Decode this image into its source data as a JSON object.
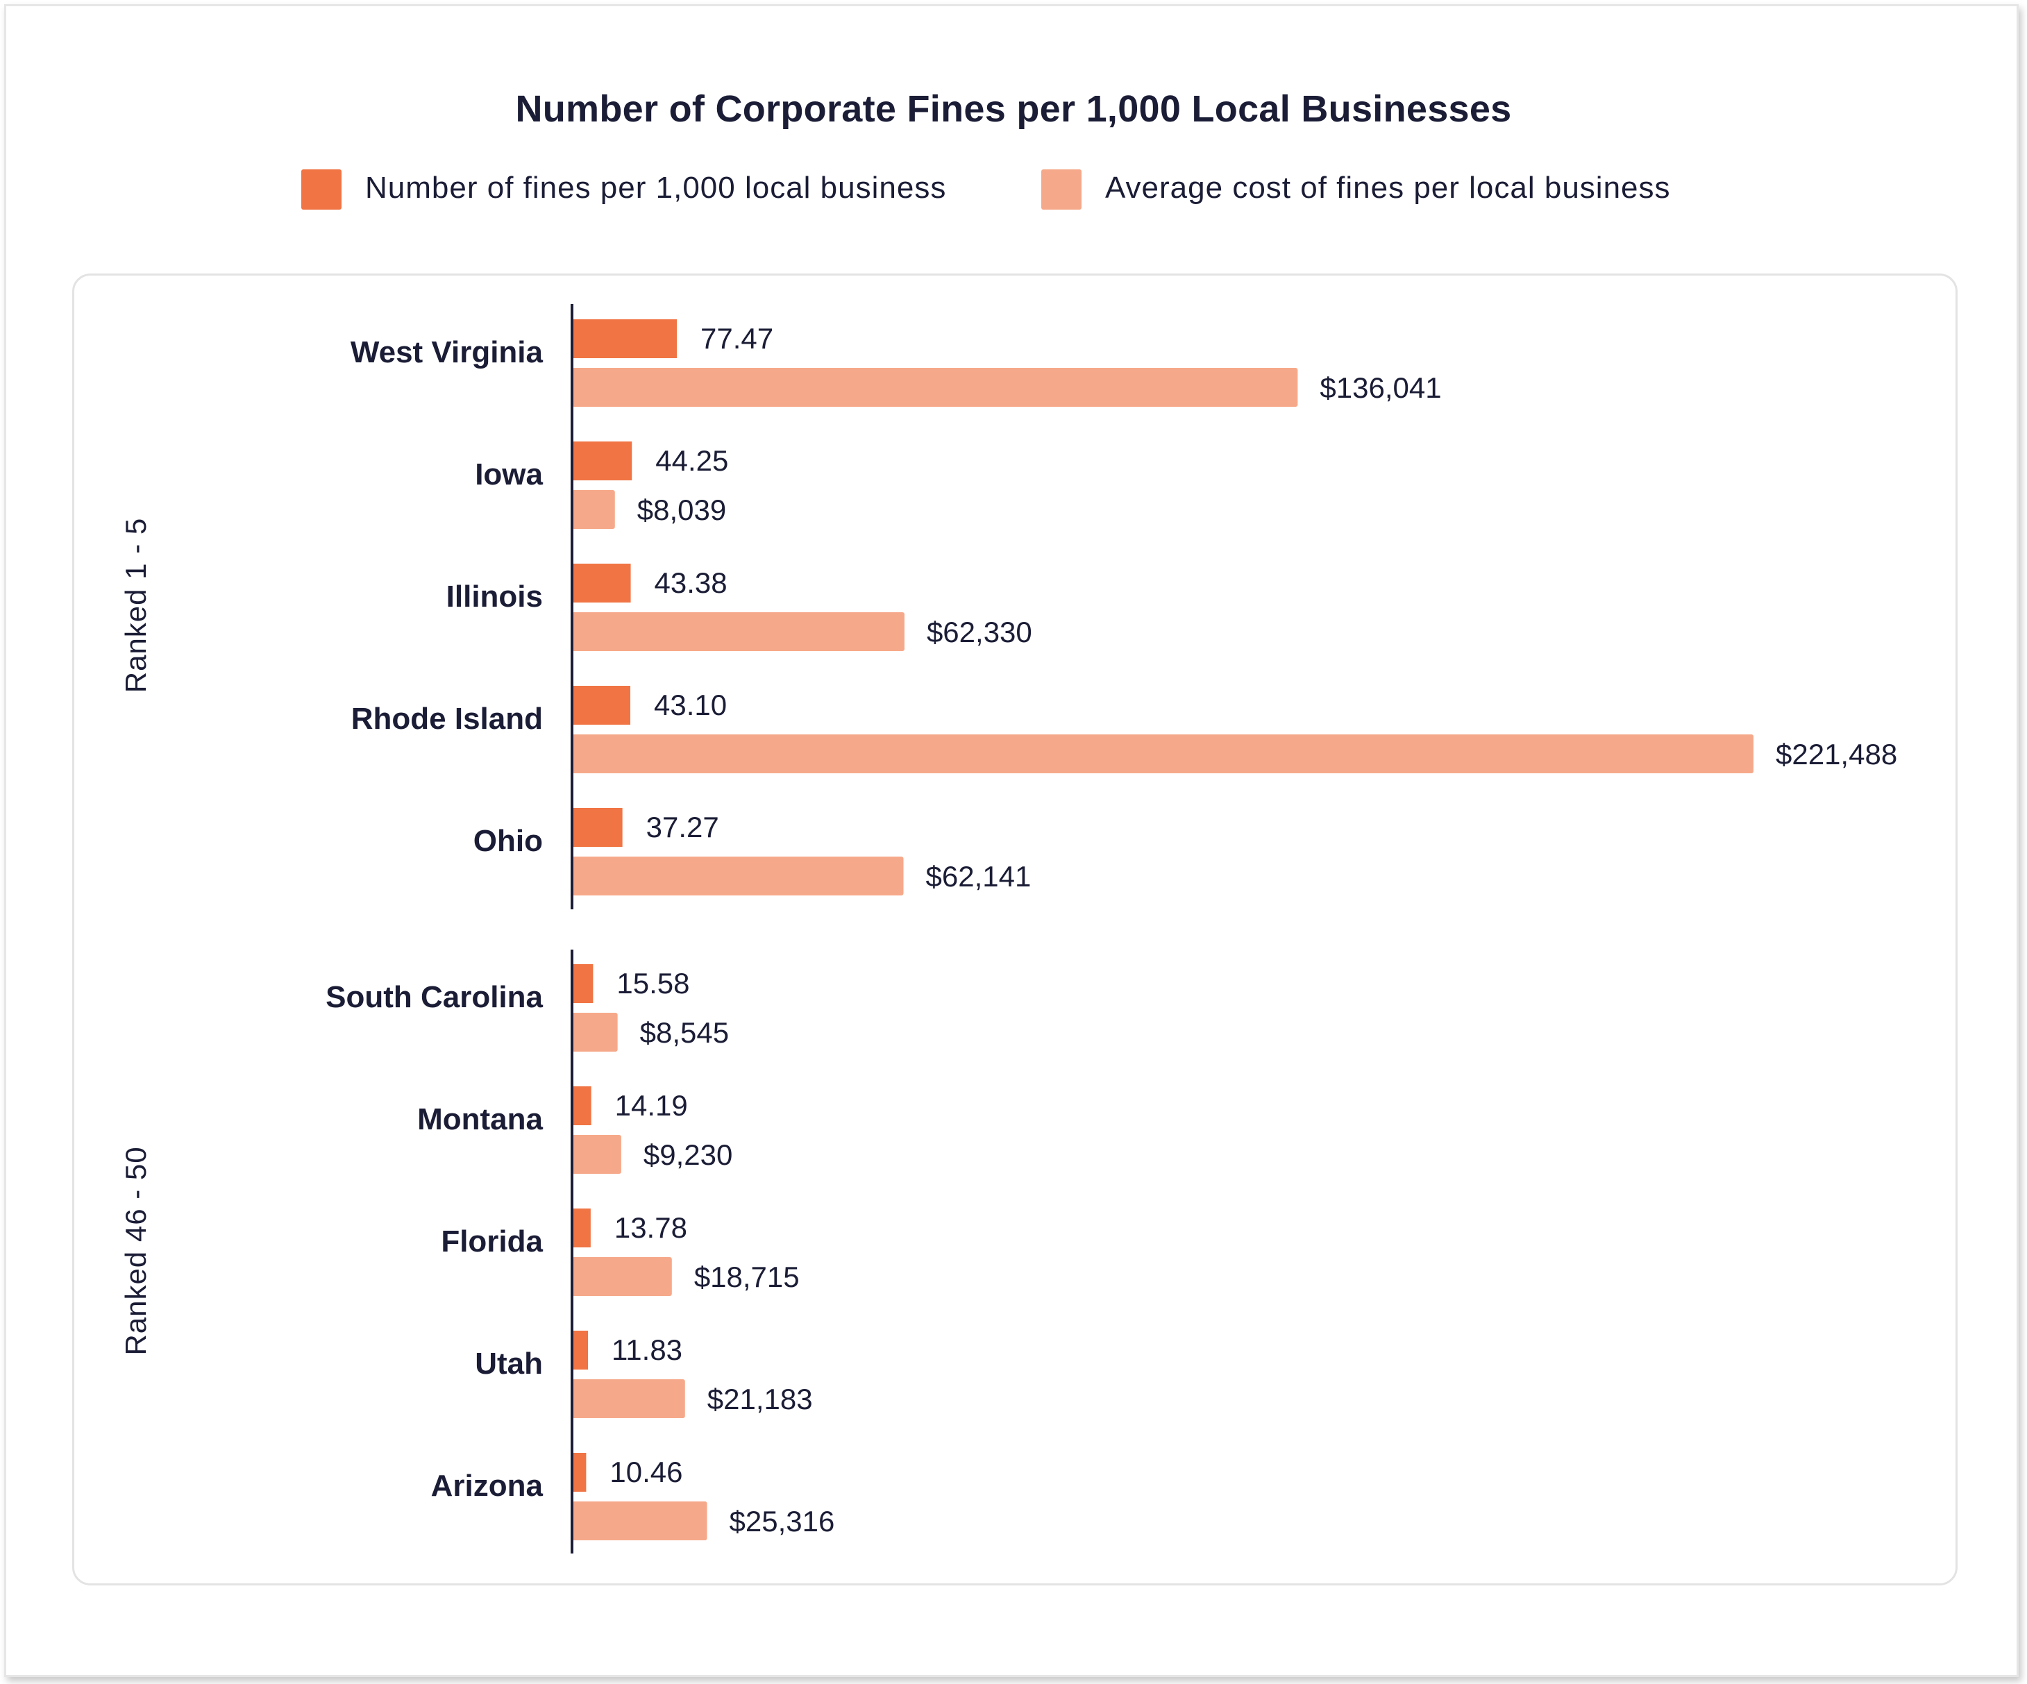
{
  "chart_data": {
    "type": "bar",
    "orientation": "horizontal",
    "title": "Number of Corporate Fines per 1,000 Local Businesses",
    "colors": {
      "fines": "#f07444",
      "cost": "#f6a98a",
      "axis": "#1b1d36",
      "text": "#1b1d36"
    },
    "legend": {
      "position": "top",
      "items": [
        {
          "key": "fines",
          "label": "Number of fines per 1,000 local business",
          "color": "#f07444"
        },
        {
          "key": "cost",
          "label": "Average cost of fines per local business",
          "color": "#f6a98a"
        }
      ]
    },
    "groups": [
      {
        "label": "Ranked 1 - 5",
        "categories": [
          "West Virginia",
          "Iowa",
          "Illinois",
          "Rhode Island",
          "Ohio"
        ],
        "fines": [
          77.47,
          44.25,
          43.38,
          43.1,
          37.27
        ],
        "fines_labels": [
          "77.47",
          "44.25",
          "43.38",
          "43.10",
          "37.27"
        ],
        "cost": [
          136041,
          8039,
          62330,
          221488,
          62141
        ],
        "cost_labels": [
          "$136,041",
          "$8,039",
          "$62,330",
          "$221,488",
          "$62,141"
        ]
      },
      {
        "label": "Ranked 46 - 50",
        "categories": [
          "South Carolina",
          "Montana",
          "Florida",
          "Utah",
          "Arizona"
        ],
        "fines": [
          15.58,
          14.19,
          13.78,
          11.83,
          10.46
        ],
        "fines_labels": [
          "15.58",
          "14.19",
          "13.78",
          "11.83",
          "10.46"
        ],
        "cost": [
          8545,
          9230,
          18715,
          21183,
          25316
        ],
        "cost_labels": [
          "$8,545",
          "$9,230",
          "$18,715",
          "$21,183",
          "$25,316"
        ]
      }
    ]
  }
}
